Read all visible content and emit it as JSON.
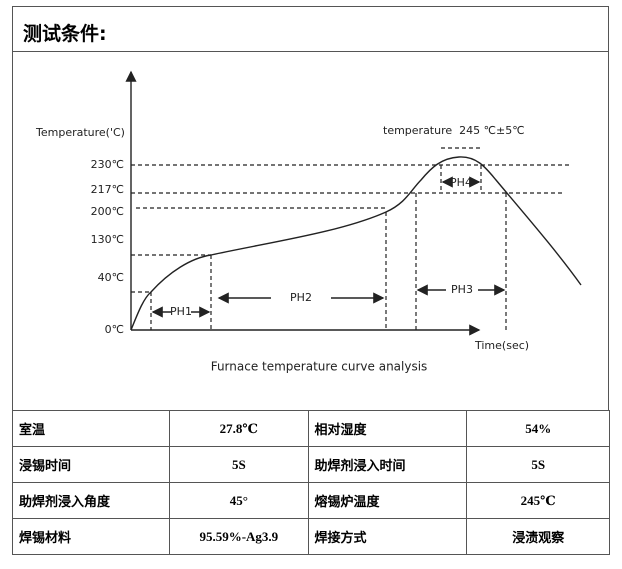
{
  "header": {
    "title": "测试条件:"
  },
  "figure": {
    "y_axis_label": "Temperature('C)",
    "x_axis_label": "Time(sec)",
    "temperature_note": "temperature  245 ℃±5℃",
    "y_tick_labels": [
      "230℃",
      "217℃",
      "200℃",
      "130℃",
      "40℃",
      "0℃"
    ],
    "phase_labels": [
      "PH1",
      "PH2",
      "PH3",
      "PH4"
    ],
    "caption": "Furnace temperature curve analysis"
  },
  "table": {
    "rows": [
      [
        "室温",
        "27.8℃",
        "相对湿度",
        "54%"
      ],
      [
        "浸锡时间",
        "5S",
        "助焊剂浸入时间",
        "5S"
      ],
      [
        "助焊剂浸入角度",
        "45°",
        "熔锡炉温度",
        "245℃"
      ],
      [
        "焊锡材料",
        "95.59%-Ag3.9",
        "焊接方式",
        "浸渍观察"
      ]
    ]
  }
}
